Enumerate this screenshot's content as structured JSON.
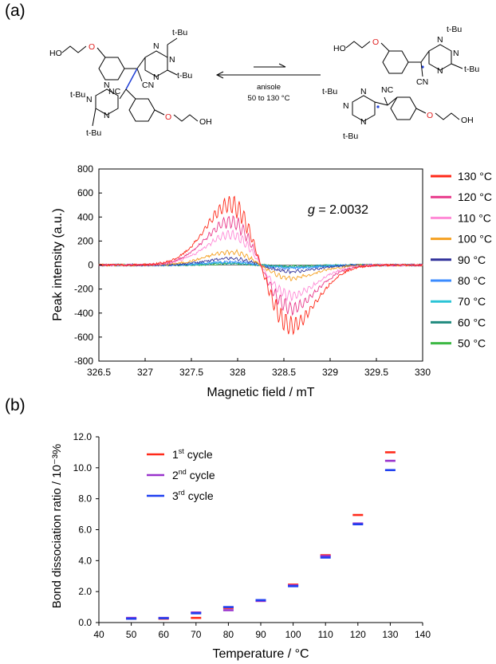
{
  "panel_labels": {
    "a": "(a)",
    "b": "(b)"
  },
  "scheme": {
    "condition_line1": "anisole",
    "condition_line2": "50 to 130 °C",
    "labels": {
      "tBu": "t-Bu",
      "HO": "HO",
      "OH": "OH",
      "O": "O",
      "N": "N",
      "CN": "CN",
      "NC": "NC"
    },
    "colors": {
      "bond": "#1f3fd6",
      "radical_dot": "#1f3fd6",
      "oxygen": "#e02020"
    }
  },
  "chart_data": [
    {
      "type": "line",
      "xlabel": "Magnetic field / mT",
      "ylabel": "Peak intensity (a.u.)",
      "xlim": [
        326.5,
        330
      ],
      "ylim": [
        -800,
        800
      ],
      "x_ticks": [
        "326.5",
        "327",
        "327.5",
        "328",
        "328.5",
        "329",
        "329.5",
        "330"
      ],
      "y_ticks": [
        "800",
        "600",
        "400",
        "200",
        "0",
        "-200",
        "-400",
        "-600",
        "-800"
      ],
      "annotation": {
        "prefix": "g",
        "text": " = 2.0032",
        "x": 328.55,
        "y": 330
      },
      "legend_position": "right",
      "series": [
        {
          "name": "130 °C",
          "color": "#ff2a1a",
          "center": 328.25,
          "width": 0.5,
          "amplitude": 560
        },
        {
          "name": "120 °C",
          "color": "#e8388a",
          "center": 328.25,
          "width": 0.5,
          "amplitude": 400
        },
        {
          "name": "110 °C",
          "color": "#ff8ad6",
          "center": 328.25,
          "width": 0.5,
          "amplitude": 280
        },
        {
          "name": "100 °C",
          "color": "#f5a020",
          "center": 328.25,
          "width": 0.5,
          "amplitude": 120
        },
        {
          "name": "90 °C",
          "color": "#30319a",
          "center": 328.25,
          "width": 0.5,
          "amplitude": 60
        },
        {
          "name": "80 °C",
          "color": "#3b8bff",
          "center": 328.25,
          "width": 0.5,
          "amplitude": 30
        },
        {
          "name": "70 °C",
          "color": "#2bc4d6",
          "center": 328.25,
          "width": 0.5,
          "amplitude": 20
        },
        {
          "name": "60 °C",
          "color": "#1f8a7e",
          "center": 328.25,
          "width": 0.5,
          "amplitude": 15
        },
        {
          "name": "50 °C",
          "color": "#3cb843",
          "center": 328.25,
          "width": 0.5,
          "amplitude": 10
        }
      ]
    },
    {
      "type": "scatter",
      "xlabel": "Temperature / °C",
      "ylabel": "Bond dissociation ratio / 10⁻³%",
      "xlim": [
        40,
        140
      ],
      "ylim": [
        0,
        12
      ],
      "x_ticks": [
        "40",
        "50",
        "60",
        "70",
        "80",
        "90",
        "100",
        "110",
        "120",
        "130",
        "140"
      ],
      "y_ticks": [
        "12.0",
        "10.0",
        "8.0",
        "6.0",
        "4.0",
        "2.0",
        "0.0"
      ],
      "legend_position": "top-left",
      "x": [
        50,
        60,
        70,
        80,
        90,
        100,
        110,
        120,
        130
      ],
      "series": [
        {
          "name": "1",
          "sup": "st",
          "rest": " cycle",
          "color": "#ff2a1a",
          "values": [
            0.25,
            0.25,
            0.3,
            0.95,
            1.4,
            2.45,
            4.35,
            6.95,
            11.0
          ]
        },
        {
          "name": "2",
          "sup": "nd",
          "rest": " cycle",
          "color": "#9933cc",
          "values": [
            0.3,
            0.3,
            0.65,
            0.8,
            1.4,
            2.4,
            4.3,
            6.4,
            10.45
          ]
        },
        {
          "name": "3",
          "sup": "rd",
          "rest": " cycle",
          "color": "#1f3ff0",
          "values": [
            0.25,
            0.28,
            0.6,
            1.0,
            1.45,
            2.35,
            4.2,
            6.35,
            9.85
          ]
        }
      ]
    }
  ]
}
